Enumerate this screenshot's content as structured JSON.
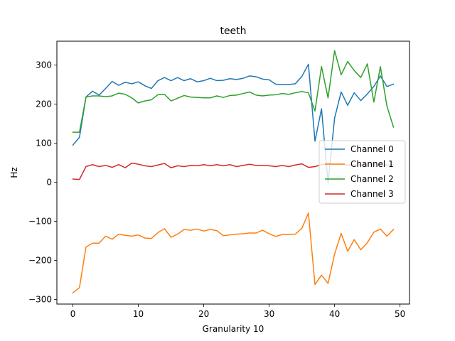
{
  "chart_data": {
    "type": "line",
    "title": "teeth",
    "xlabel": "Granularity 10",
    "ylabel": "Hz",
    "xlim": [
      -2.45,
      51.45
    ],
    "ylim": [
      -312,
      361
    ],
    "xticks": [
      0,
      10,
      20,
      30,
      40,
      50
    ],
    "yticks": [
      -300,
      -200,
      -100,
      0,
      100,
      200,
      300
    ],
    "xtick_labels": [
      "0",
      "10",
      "20",
      "30",
      "40",
      "50"
    ],
    "ytick_labels": [
      "−300",
      "−200",
      "−100",
      "0",
      "100",
      "200",
      "300"
    ],
    "grid": false,
    "legend_position": "center-right",
    "x": [
      0,
      1,
      2,
      3,
      4,
      5,
      6,
      7,
      8,
      9,
      10,
      11,
      12,
      13,
      14,
      15,
      16,
      17,
      18,
      19,
      20,
      21,
      22,
      23,
      24,
      25,
      26,
      27,
      28,
      29,
      30,
      31,
      32,
      33,
      34,
      35,
      36,
      37,
      38,
      39,
      40,
      41,
      42,
      43,
      44,
      45,
      46,
      47,
      48,
      49
    ],
    "series": [
      {
        "name": "Channel 0",
        "color": "#1f77b4",
        "values": [
          95,
          115,
          218,
          233,
          223,
          240,
          258,
          248,
          256,
          252,
          257,
          247,
          240,
          260,
          268,
          260,
          268,
          260,
          265,
          257,
          260,
          266,
          260,
          261,
          265,
          263,
          266,
          272,
          270,
          264,
          262,
          251,
          250,
          250,
          252,
          271,
          302,
          105,
          188,
          -2,
          164,
          231,
          197,
          229,
          209,
          226,
          245,
          272,
          245,
          251
        ]
      },
      {
        "name": "Channel 1",
        "color": "#ff7f0e",
        "values": [
          -283,
          -270,
          -166,
          -156,
          -156,
          -138,
          -146,
          -133,
          -136,
          -138,
          -135,
          -143,
          -144,
          -129,
          -119,
          -141,
          -133,
          -121,
          -123,
          -120,
          -125,
          -121,
          -124,
          -137,
          -135,
          -133,
          -132,
          -130,
          -130,
          -123,
          -132,
          -139,
          -134,
          -134,
          -133,
          -118,
          -79,
          -262,
          -238,
          -259,
          -184,
          -131,
          -177,
          -147,
          -173,
          -155,
          -128,
          -120,
          -138,
          -121
        ]
      },
      {
        "name": "Channel 2",
        "color": "#2ca02c",
        "values": [
          128,
          128,
          218,
          221,
          221,
          219,
          221,
          228,
          225,
          216,
          203,
          208,
          211,
          224,
          225,
          208,
          215,
          222,
          218,
          217,
          216,
          216,
          221,
          217,
          222,
          223,
          227,
          231,
          223,
          221,
          223,
          224,
          227,
          225,
          229,
          232,
          229,
          182,
          296,
          216,
          337,
          275,
          309,
          286,
          268,
          303,
          205,
          296,
          195,
          141
        ]
      },
      {
        "name": "Channel 3",
        "color": "#d62728",
        "values": [
          8,
          7,
          40,
          45,
          40,
          43,
          38,
          45,
          37,
          49,
          46,
          42,
          40,
          44,
          48,
          37,
          42,
          40,
          43,
          42,
          45,
          42,
          45,
          42,
          45,
          40,
          43,
          46,
          43,
          43,
          42,
          40,
          43,
          40,
          44,
          47,
          38,
          40,
          45,
          48,
          45,
          46,
          44,
          44,
          44,
          44,
          44,
          44,
          44,
          44
        ]
      }
    ]
  }
}
